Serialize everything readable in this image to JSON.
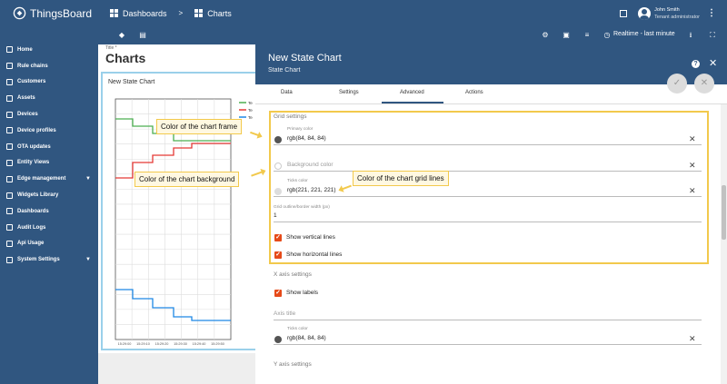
{
  "app": {
    "logo_text": "ThingsBoard",
    "breadcrumb": [
      "Dashboards",
      "Charts"
    ],
    "breadcrumb_sep": ">",
    "user_name": "John Smith",
    "user_role": "Tenant administrator"
  },
  "sidebar": {
    "items": [
      {
        "label": "Home",
        "icon": "home-icon"
      },
      {
        "label": "Rule chains",
        "icon": "rule-chain-icon"
      },
      {
        "label": "Customers",
        "icon": "customers-icon"
      },
      {
        "label": "Assets",
        "icon": "assets-icon"
      },
      {
        "label": "Devices",
        "icon": "devices-icon"
      },
      {
        "label": "Device profiles",
        "icon": "device-profiles-icon"
      },
      {
        "label": "OTA updates",
        "icon": "ota-icon"
      },
      {
        "label": "Entity Views",
        "icon": "entity-views-icon"
      },
      {
        "label": "Edge management",
        "icon": "edge-icon",
        "expandable": true
      },
      {
        "label": "Widgets Library",
        "icon": "widgets-icon"
      },
      {
        "label": "Dashboards",
        "icon": "dashboards-icon"
      },
      {
        "label": "Audit Logs",
        "icon": "audit-icon"
      },
      {
        "label": "Api Usage",
        "icon": "api-icon"
      },
      {
        "label": "System Settings",
        "icon": "settings-icon",
        "expandable": true
      }
    ]
  },
  "dashboard": {
    "title_small": "Title *",
    "title": "Charts",
    "timewindow": "Realtime - last minute"
  },
  "widget": {
    "title": "New State Chart",
    "legend": [
      "Te",
      "Te",
      "Te"
    ],
    "x_ticks": [
      "15:29:00",
      "15:29:10",
      "15:29:20",
      "15:29:30",
      "15:29:40",
      "15:29:50"
    ]
  },
  "chart_data": {
    "type": "line",
    "title": "New State Chart",
    "x": [
      "15:29:00",
      "15:29:10",
      "15:29:20",
      "15:29:30",
      "15:29:40",
      "15:29:50"
    ],
    "series": [
      {
        "name": "Te",
        "color": "#4caf50"
      },
      {
        "name": "Te",
        "color": "#e53935"
      },
      {
        "name": "Te",
        "color": "#1e88e5"
      }
    ],
    "grid": true
  },
  "panel": {
    "title": "New State Chart",
    "subtitle": "State Chart",
    "tabs": [
      "Data",
      "Settings",
      "Advanced",
      "Actions"
    ],
    "active_tab": "Advanced"
  },
  "form": {
    "grid_section": "Grid settings",
    "primary_color_label": "Primary color",
    "primary_color_value": "rgb(84, 84, 84)",
    "background_color_placeholder": "Background color",
    "ticks_color_label": "Ticks color",
    "ticks_color_value": "rgb(221, 221, 221)",
    "outline_label": "Grid outline/border width (px)",
    "outline_value": "1",
    "show_vertical": "Show vertical lines",
    "show_horizontal": "Show horizontal lines",
    "x_axis_section": "X axis settings",
    "show_labels": "Show labels",
    "axis_title_placeholder": "Axis title",
    "x_ticks_color_label": "Ticks color",
    "x_ticks_color_value": "rgb(84, 84, 84)",
    "y_axis_section": "Y axis settings"
  },
  "callouts": {
    "frame": "Color of the chart frame",
    "background": "Color of the chart background",
    "grid_lines": "Color of the chart grid lines"
  },
  "colors": {
    "primary": "#305680",
    "highlight": "#f2c94c",
    "checkbox": "#e64a19"
  }
}
